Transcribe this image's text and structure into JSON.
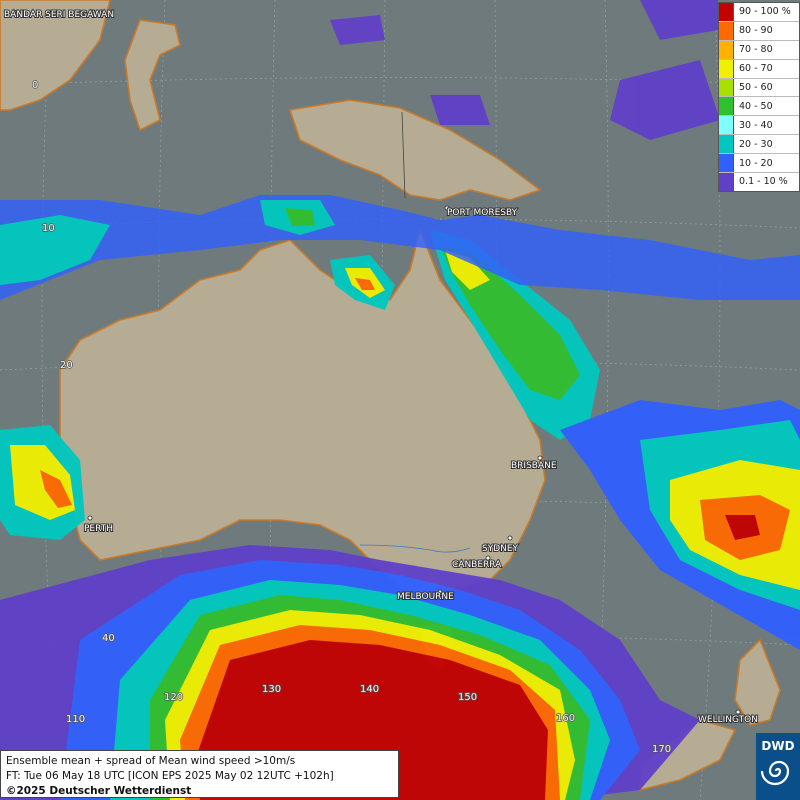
{
  "legend": {
    "items": [
      {
        "label": "90 - 100 %",
        "color": "#c40000"
      },
      {
        "label": "80 - 90",
        "color": "#ff6a00"
      },
      {
        "label": "70 - 80",
        "color": "#ffb000"
      },
      {
        "label": "60 - 70",
        "color": "#f0f000"
      },
      {
        "label": "50 - 60",
        "color": "#a8e000"
      },
      {
        "label": "40 - 50",
        "color": "#30c030"
      },
      {
        "label": "30 - 40",
        "color": "#80ffff"
      },
      {
        "label": "20 - 30",
        "color": "#00c8c0"
      },
      {
        "label": "10 - 20",
        "color": "#3060ff"
      },
      {
        "label": "0.1 - 10 %",
        "color": "#6040c8"
      }
    ]
  },
  "caption": {
    "line1": "Ensemble mean + spread of Mean wind speed >10m/s",
    "line2": "FT: Tue 06 May 18 UTC [ICON EPS 2025 May 02 12UTC +102h]",
    "line3": "©2025 Deutscher Wetterdienst"
  },
  "logo": {
    "text": "DWD"
  },
  "cities": {
    "bandar": "BANDAR SERI BEGAWAN",
    "port_moresby": "PORT MORESBY",
    "brisbane": "BRISBANE",
    "perth": "PERTH",
    "sydney": "SYDNEY",
    "canberra": "CANBERRA",
    "melbourne": "MELBOURNE",
    "wellington": "WELLINGTON"
  },
  "grid_labels": {
    "lat0": "0",
    "lat10": "10",
    "lat20": "20",
    "lat40": "40",
    "lon110": "110",
    "lon120": "120",
    "lon130": "130",
    "lon140": "140",
    "lon150": "150",
    "lon160": "160",
    "lon170": "170"
  }
}
